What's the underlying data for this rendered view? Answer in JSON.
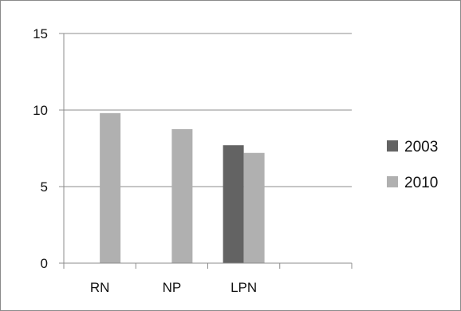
{
  "chart_data": {
    "type": "bar",
    "categories": [
      "RN",
      "NP",
      "LPN",
      ""
    ],
    "series": [
      {
        "name": "2003",
        "color": "#636363",
        "values": [
          null,
          null,
          7.7,
          null
        ]
      },
      {
        "name": "2010",
        "color": "#b0b0b0",
        "values": [
          9.8,
          8.75,
          7.2,
          null
        ]
      }
    ],
    "ylim": [
      0,
      15
    ],
    "yticks": [
      0,
      5,
      10,
      15
    ],
    "grid": true,
    "legend_position": "right",
    "title": "",
    "xlabel": "",
    "ylabel": ""
  }
}
